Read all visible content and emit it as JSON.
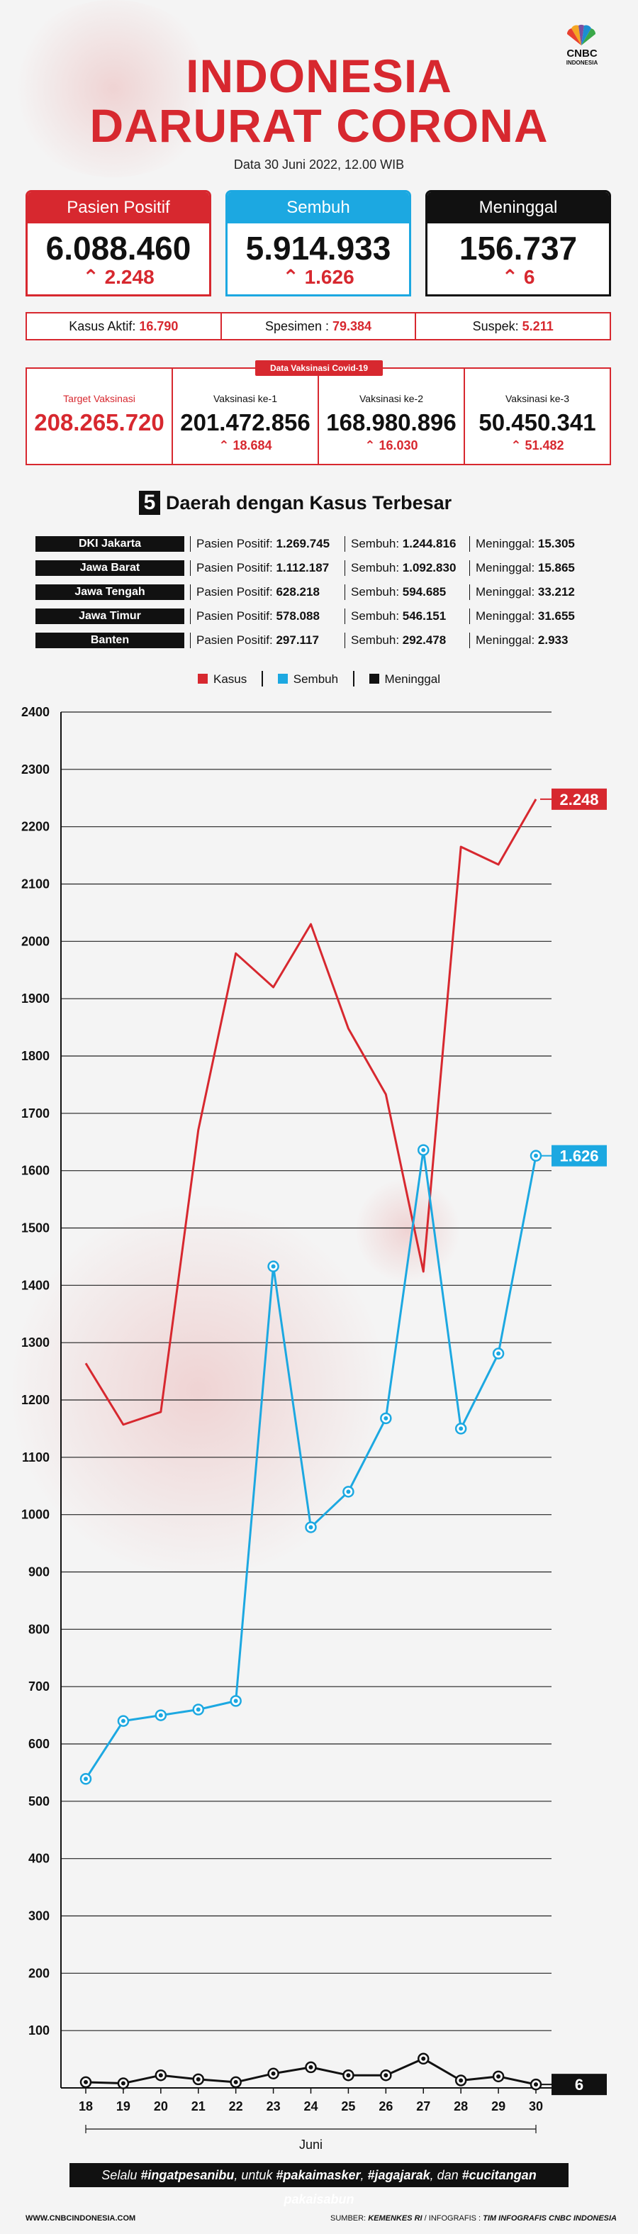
{
  "header": {
    "title_line1": "INDONESIA",
    "title_line2": "DARURAT CORONA",
    "subtitle": "Data 30 Juni 2022, 12.00 WIB",
    "logo_text": "CNBC",
    "logo_sub": "INDONESIA"
  },
  "stats": {
    "positive": {
      "label": "Pasien Positif",
      "value": "6.088.460",
      "change": "2.248",
      "color": "#d7282f"
    },
    "recovered": {
      "label": "Sembuh",
      "value": "5.914.933",
      "change": "1.626",
      "color": "#1ca8e1"
    },
    "deaths": {
      "label": "Meninggal",
      "value": "156.737",
      "change": "6",
      "color": "#111111"
    }
  },
  "summary": {
    "active_label": "Kasus Aktif: ",
    "active_value": "16.790",
    "specimen_label": "Spesimen : ",
    "specimen_value": "79.384",
    "suspect_label": "Suspek: ",
    "suspect_value": "5.211"
  },
  "vaccination": {
    "tag": "Data Vaksinasi Covid-19",
    "target_label": "Target Vaksinasi",
    "target_value": "208.265.720",
    "dose1_label": "Vaksinasi ke-1",
    "dose1_value": "201.472.856",
    "dose1_change": "18.684",
    "dose2_label": "Vaksinasi ke-2",
    "dose2_value": "168.980.896",
    "dose2_change": "16.030",
    "dose3_label": "Vaksinasi ke-3",
    "dose3_value": "50.450.341",
    "dose3_change": "51.482"
  },
  "regions": {
    "title_number": "5",
    "title_text": "Daerah dengan Kasus Terbesar",
    "positive_label": "Pasien Positif: ",
    "recovered_label": "Sembuh: ",
    "deaths_label": "Meninggal: ",
    "rows": [
      {
        "name": "DKI Jakarta",
        "positive": "1.269.745",
        "recovered": "1.244.816",
        "deaths": "15.305"
      },
      {
        "name": "Jawa Barat",
        "positive": "1.112.187",
        "recovered": "1.092.830",
        "deaths": "15.865"
      },
      {
        "name": "Jawa Tengah",
        "positive": "628.218",
        "recovered": "594.685",
        "deaths": "33.212"
      },
      {
        "name": "Jawa Timur",
        "positive": "578.088",
        "recovered": "546.151",
        "deaths": "31.655"
      },
      {
        "name": "Banten",
        "positive": "297.117",
        "recovered": "292.478",
        "deaths": "2.933"
      }
    ]
  },
  "chart_data": {
    "type": "line",
    "title": "",
    "xlabel": "Juni",
    "ylabel": "",
    "x": [
      "18",
      "19",
      "20",
      "21",
      "22",
      "23",
      "24",
      "25",
      "26",
      "27",
      "28",
      "29",
      "30"
    ],
    "ylim": [
      0,
      2400
    ],
    "yticks": [
      100,
      200,
      300,
      400,
      500,
      600,
      700,
      800,
      900,
      1000,
      1100,
      1200,
      1300,
      1400,
      1500,
      1600,
      1700,
      1800,
      1900,
      2000,
      2100,
      2200,
      2300,
      2400
    ],
    "grid": true,
    "legend": "top-center",
    "series": [
      {
        "name": "Kasus",
        "color": "#d7282f",
        "marker": false,
        "end_label": "2.248",
        "values": [
          1264,
          1157,
          1179,
          1671,
          1979,
          1920,
          2030,
          1848,
          1733,
          1424,
          2165,
          2134,
          2248
        ]
      },
      {
        "name": "Sembuh",
        "color": "#1ca8e1",
        "marker": true,
        "end_label": "1.626",
        "values": [
          539,
          640,
          650,
          660,
          675,
          1433,
          978,
          1040,
          1168,
          1636,
          1150,
          1281,
          1626
        ]
      },
      {
        "name": "Meninggal",
        "color": "#111111",
        "marker": true,
        "end_label": "6",
        "values": [
          10,
          8,
          22,
          15,
          10,
          25,
          36,
          22,
          22,
          51,
          13,
          20,
          6
        ]
      }
    ]
  },
  "footnote": {
    "pre": "Selalu ",
    "t1": "#ingatpesanibu",
    "m1": ", untuk ",
    "t2": "#pakaimasker",
    "m2": ", ",
    "t3": "#jagajarak",
    "m3": ", dan ",
    "t4": "#cucitangan pakaisabun"
  },
  "footer": {
    "site": "WWW.CNBCINDONESIA.COM",
    "source_label": "SUMBER: ",
    "source": "KEMENKES RI",
    "credit_label": " / INFOGRAFIS : ",
    "credit": "TIM INFOGRAFIS CNBC INDONESIA"
  }
}
